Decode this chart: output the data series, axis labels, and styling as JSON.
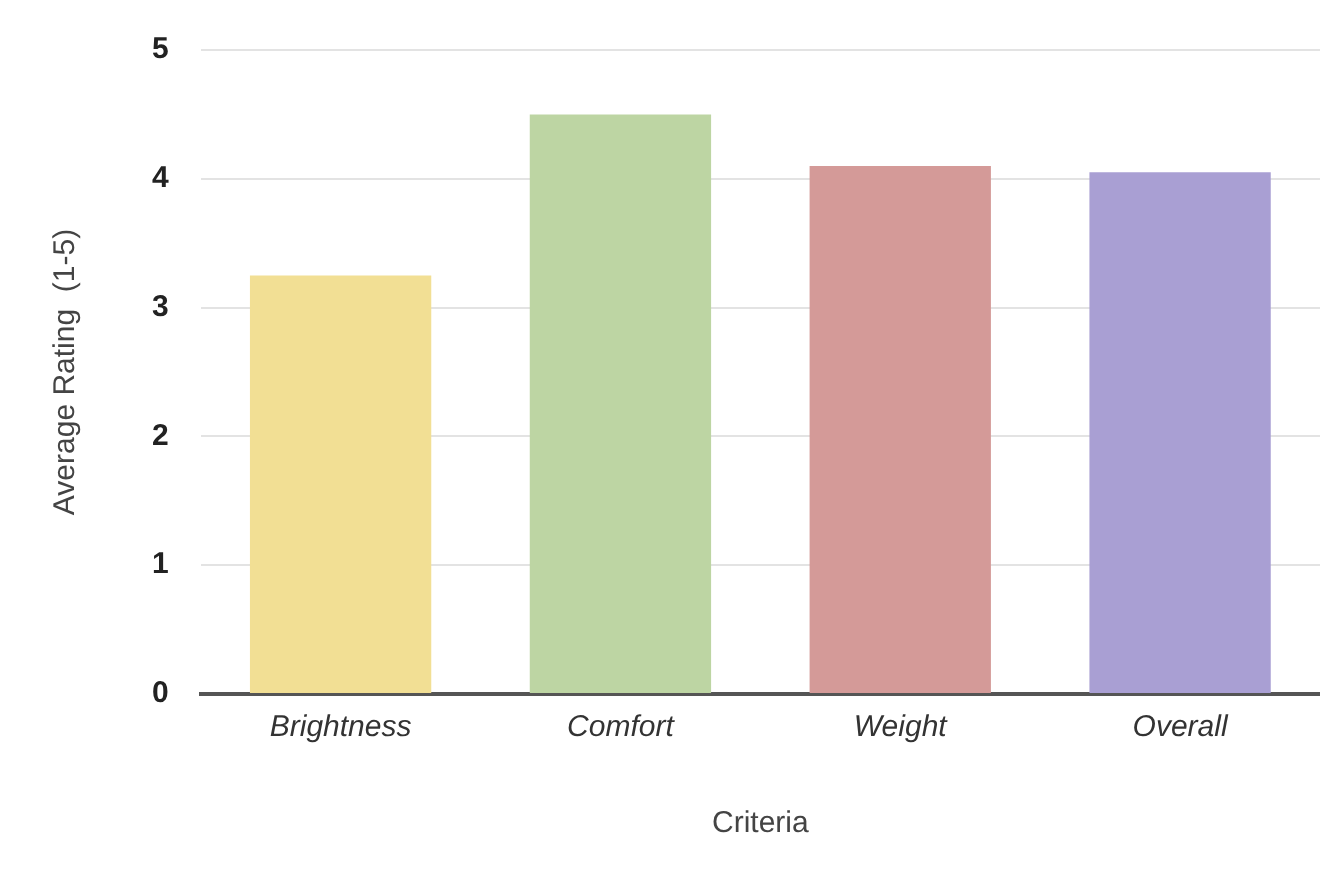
{
  "chart_data": {
    "type": "bar",
    "xlabel": "Criteria",
    "ylabel": "Average Rating  (1-5)",
    "categories": [
      "Brightness",
      "Comfort",
      "Weight",
      "Overall"
    ],
    "values": [
      3.25,
      4.5,
      4.1,
      4.05
    ],
    "colors": [
      "#f2df94",
      "#bdd5a3",
      "#d49a98",
      "#a99fd3"
    ],
    "ylim": [
      0,
      5
    ],
    "yticks": [
      0,
      1,
      2,
      3,
      4,
      5
    ],
    "grid": "y",
    "legend": false
  }
}
